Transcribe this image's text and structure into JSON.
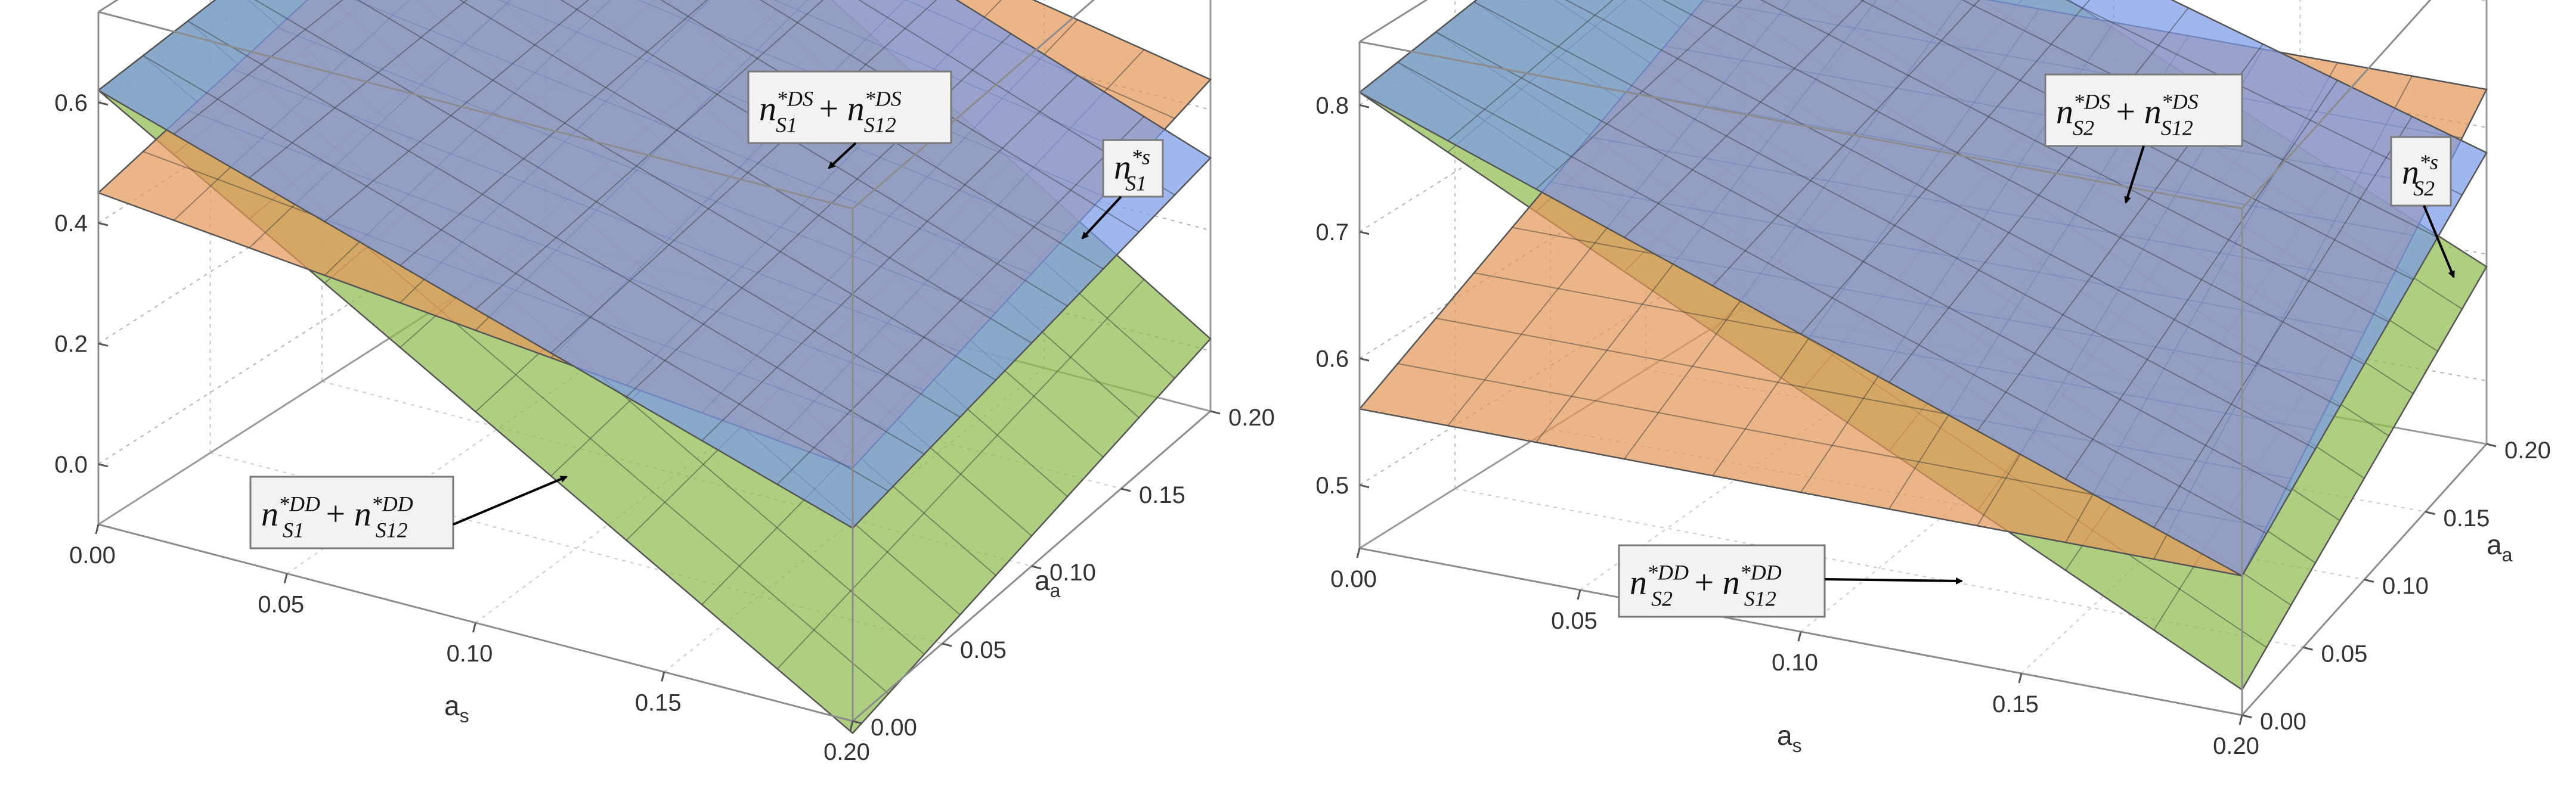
{
  "colors": {
    "blue_surface": "#7b9ae8",
    "orange_surface": "#e3985a",
    "green_surface": "#8fbd4e",
    "box_edge": "#7a7a7a",
    "label_bg": "#f2f2f2"
  },
  "chart_data": [
    {
      "type": "surface3d",
      "x_axis": {
        "label": "a_s",
        "ticks": [
          "0.00",
          "0.05",
          "0.10",
          "0.15",
          "0.20"
        ],
        "range": [
          0,
          0.2
        ]
      },
      "y_axis": {
        "label": "a_a",
        "ticks": [
          "0.00",
          "0.05",
          "0.10",
          "0.15",
          "0.20"
        ],
        "range": [
          0,
          0.2
        ]
      },
      "z_axis": {
        "ticks": [
          "0.0",
          "0.2",
          "0.4",
          "0.6"
        ],
        "range": [
          -0.1,
          0.75
        ]
      },
      "series": [
        {
          "name": "n*DS S1 + n*DS S12",
          "color": "blue",
          "corner_values": {
            "x0_y0": 0.62,
            "x1_y0": 0.22,
            "x0_y1": 0.72,
            "x1_y1": 0.32
          }
        },
        {
          "name": "n*s S1",
          "color": "orange",
          "corner_values": {
            "x0_y0": 0.45,
            "x1_y0": 0.32,
            "x0_y1": 0.66,
            "x1_y1": 0.45
          }
        },
        {
          "name": "n*DD S1 + n*DD S12",
          "color": "green",
          "corner_values": {
            "x0_y0": 0.62,
            "x1_y0": -0.12,
            "x0_y1": 0.72,
            "x1_y1": 0.02
          }
        }
      ],
      "annotations": [
        {
          "terms": [
            {
              "base": "n",
              "sup": "*DS",
              "sub": "S1"
            },
            {
              "base": "n",
              "sup": "*DS",
              "sub": "S12"
            }
          ]
        },
        {
          "terms": [
            {
              "base": "n",
              "sup": "*s",
              "sub": "S1"
            }
          ]
        },
        {
          "terms": [
            {
              "base": "n",
              "sup": "*DD",
              "sub": "S1"
            },
            {
              "base": "n",
              "sup": "*DD",
              "sub": "S12"
            }
          ]
        }
      ]
    },
    {
      "type": "surface3d",
      "x_axis": {
        "label": "a_s",
        "ticks": [
          "0.00",
          "0.05",
          "0.10",
          "0.15",
          "0.20"
        ],
        "range": [
          0,
          0.2
        ]
      },
      "y_axis": {
        "label": "a_a",
        "ticks": [
          "0.00",
          "0.05",
          "0.10",
          "0.15",
          "0.20"
        ],
        "range": [
          0,
          0.2
        ]
      },
      "z_axis": {
        "ticks": [
          "0.5",
          "0.6",
          "0.7",
          "0.8"
        ],
        "range": [
          0.45,
          0.85
        ]
      },
      "series": [
        {
          "name": "n*DS S2 + n*DS S12",
          "color": "blue",
          "corner_values": {
            "x0_y0": 0.81,
            "x1_y0": 0.56,
            "x0_y1": 0.86,
            "x1_y1": 0.68
          }
        },
        {
          "name": "n*s S2",
          "color": "orange",
          "corner_values": {
            "x0_y0": 0.56,
            "x1_y0": 0.56,
            "x0_y1": 0.73,
            "x1_y1": 0.73
          }
        },
        {
          "name": "n*DD S2 + n*DD S12",
          "color": "green",
          "corner_values": {
            "x0_y0": 0.81,
            "x1_y0": 0.47,
            "x0_y1": 0.86,
            "x1_y1": 0.59
          }
        }
      ],
      "annotations": [
        {
          "terms": [
            {
              "base": "n",
              "sup": "*DS",
              "sub": "S2"
            },
            {
              "base": "n",
              "sup": "*DS",
              "sub": "S12"
            }
          ]
        },
        {
          "terms": [
            {
              "base": "n",
              "sup": "*s",
              "sub": "S2"
            }
          ]
        },
        {
          "terms": [
            {
              "base": "n",
              "sup": "*DD",
              "sub": "S2"
            },
            {
              "base": "n",
              "sup": "*DD",
              "sub": "S12"
            }
          ]
        }
      ]
    }
  ]
}
